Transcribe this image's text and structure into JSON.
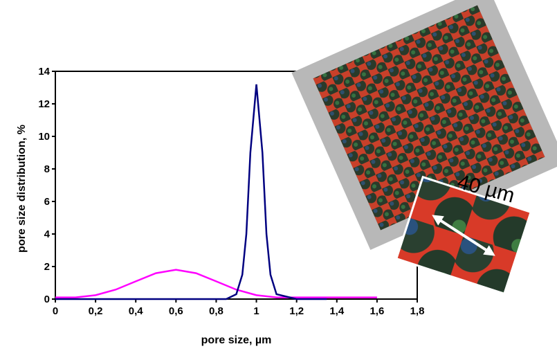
{
  "chart_data": {
    "type": "line",
    "xlabel": "pore size, µm",
    "ylabel": "pore size distribution, %",
    "annotation": "40 µm",
    "xlim": [
      0,
      1.8
    ],
    "xticks": [
      0,
      {
        "value": 0.2,
        "label": "0,2"
      },
      {
        "value": 0.4,
        "label": "0,4"
      },
      {
        "value": 0.6,
        "label": "0,6"
      },
      {
        "value": 0.8,
        "label": "0,8"
      },
      1,
      {
        "value": 1.2,
        "label": "1,2"
      },
      {
        "value": 1.4,
        "label": "1,4"
      },
      {
        "value": 1.6,
        "label": "1,6"
      },
      {
        "value": 1.8,
        "label": "1,8"
      }
    ],
    "ylim": [
      0,
      14
    ],
    "yticks": [
      0,
      2,
      4,
      6,
      8,
      10,
      12,
      14
    ],
    "series": [
      {
        "color": "#ff00ff",
        "x": [
          0,
          0.1,
          0.2,
          0.3,
          0.4,
          0.5,
          0.6,
          0.7,
          0.8,
          0.9,
          1.0,
          1.1,
          1.2,
          1.3,
          1.4,
          1.5,
          1.6
        ],
        "values": [
          0.1,
          0.1,
          0.24,
          0.58,
          1.09,
          1.59,
          1.8,
          1.59,
          1.09,
          0.58,
          0.24,
          0.1,
          0.1,
          0.1,
          0.1,
          0.1,
          0.1
        ]
      },
      {
        "color": "#000080",
        "x": [
          0,
          0.85,
          0.9,
          0.93,
          0.95,
          0.97,
          1.0,
          1.03,
          1.05,
          1.07,
          1.1,
          1.2,
          1.35
        ],
        "values": [
          0,
          0,
          0.3,
          1.5,
          4,
          9,
          13.2,
          9,
          4,
          1.5,
          0.3,
          0,
          0
        ]
      }
    ]
  }
}
